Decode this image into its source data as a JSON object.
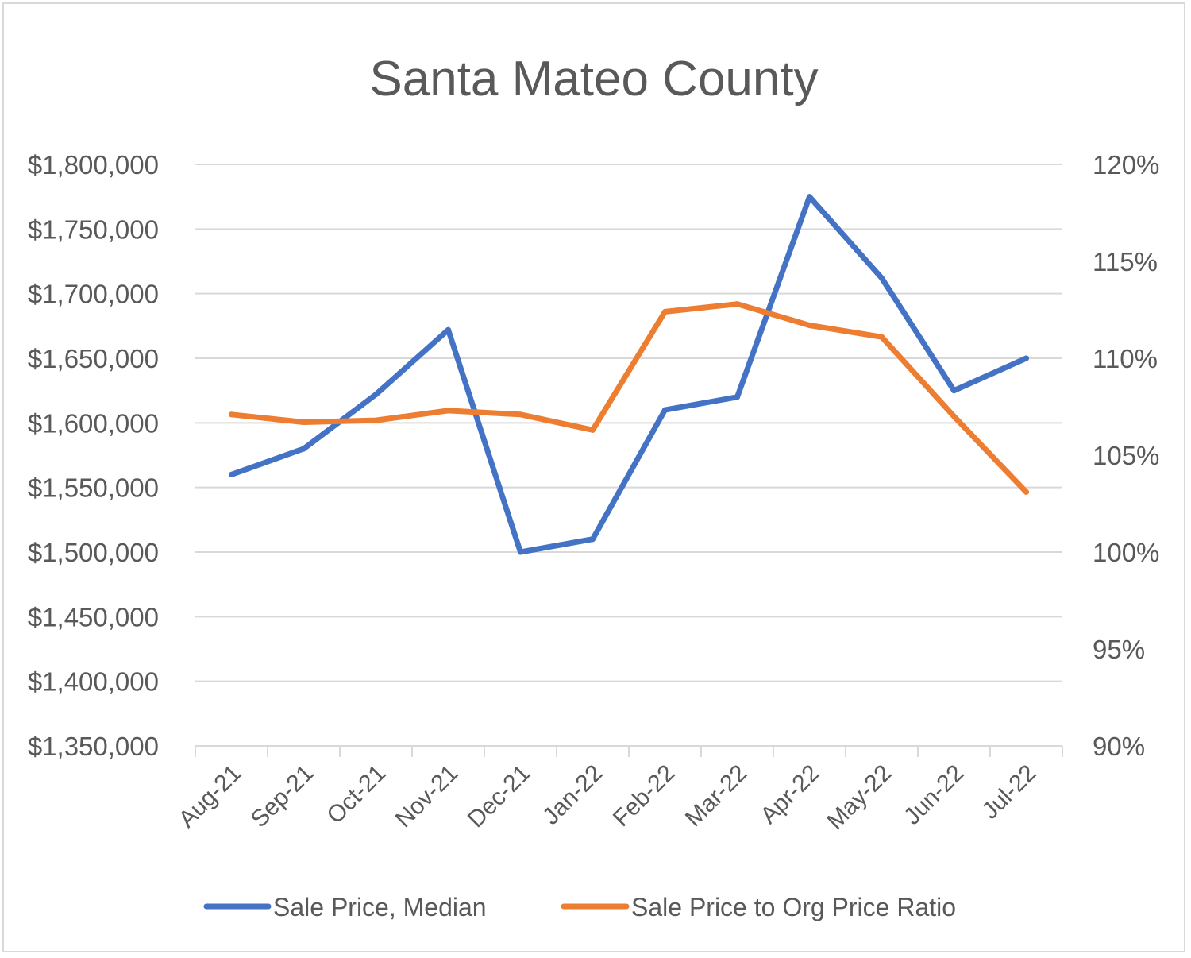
{
  "chart_data": {
    "type": "line",
    "title": "Santa Mateo County",
    "categories": [
      "Aug-21",
      "Sep-21",
      "Oct-21",
      "Nov-21",
      "Dec-21",
      "Jan-22",
      "Feb-22",
      "Mar-22",
      "Apr-22",
      "May-22",
      "Jun-22",
      "Jul-22"
    ],
    "series": [
      {
        "name": "Sale Price, Median",
        "axis": "left",
        "color": "#4472c4",
        "values": [
          1560000,
          1580000,
          1622000,
          1672000,
          1500000,
          1510000,
          1610000,
          1620000,
          1775000,
          1712000,
          1625000,
          1650000
        ]
      },
      {
        "name": "Sale Price to Org Price Ratio",
        "axis": "right",
        "color": "#ed7d31",
        "values": [
          107.1,
          106.7,
          106.8,
          107.3,
          107.1,
          106.3,
          112.4,
          112.8,
          111.7,
          111.1,
          107.0,
          103.1
        ]
      }
    ],
    "y_left": {
      "min": 1350000,
      "max": 1800000,
      "ticks": [
        "$1,800,000",
        "$1,750,000",
        "$1,700,000",
        "$1,650,000",
        "$1,600,000",
        "$1,550,000",
        "$1,500,000",
        "$1,450,000",
        "$1,400,000",
        "$1,350,000"
      ]
    },
    "y_right": {
      "min": 90,
      "max": 120,
      "ticks": [
        "120%",
        "115%",
        "110%",
        "105%",
        "100%",
        "95%",
        "90%"
      ]
    },
    "grid": true,
    "legend_position": "bottom",
    "gridline_color": "#d9d9d9",
    "text_color": "#595959"
  }
}
